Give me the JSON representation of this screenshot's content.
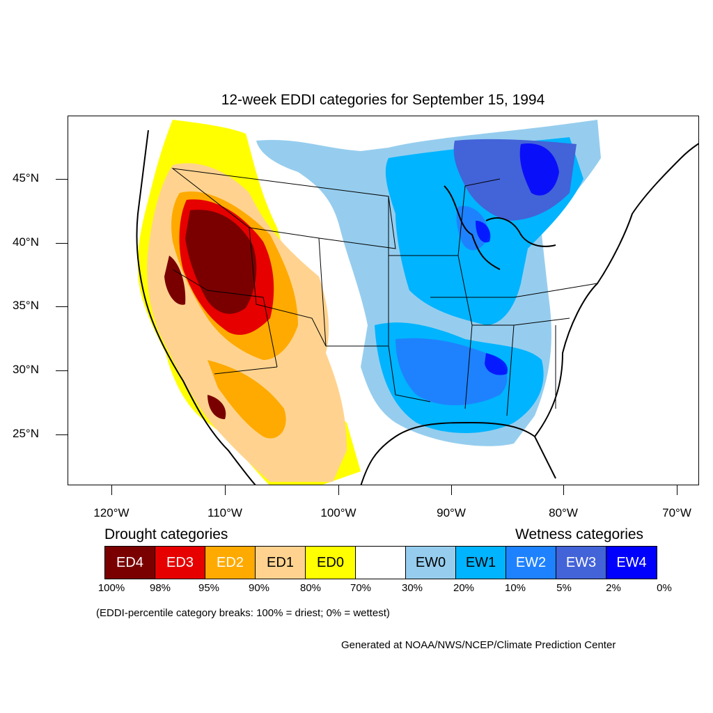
{
  "title": "12-week EDDI categories for September 15, 1994",
  "lat_labels": [
    "45°N",
    "40°N",
    "35°N",
    "30°N",
    "25°N"
  ],
  "lon_labels": [
    "120°W",
    "110°W",
    "100°W",
    "90°W",
    "80°W",
    "70°W"
  ],
  "drought_heading": "Drought categories",
  "wetness_heading": "Wetness categories",
  "legend": [
    {
      "label": "ED4",
      "color": "#7a0000",
      "text_color": "#ffffff"
    },
    {
      "label": "ED3",
      "color": "#e60000",
      "text_color": "#ffffff"
    },
    {
      "label": "ED2",
      "color": "#ffaa00",
      "text_color": "#ffffff"
    },
    {
      "label": "ED1",
      "color": "#ffd38f",
      "text_color": "#000000"
    },
    {
      "label": "ED0",
      "color": "#ffff00",
      "text_color": "#000000"
    },
    {
      "label": "",
      "color": "#ffffff",
      "text_color": "#000000"
    },
    {
      "label": "EW0",
      "color": "#96cdee",
      "text_color": "#000000"
    },
    {
      "label": "EW1",
      "color": "#00b4ff",
      "text_color": "#000000"
    },
    {
      "label": "EW2",
      "color": "#1e82ff",
      "text_color": "#ffffff"
    },
    {
      "label": "EW3",
      "color": "#4363d8",
      "text_color": "#ffffff"
    },
    {
      "label": "EW4",
      "color": "#0000ff",
      "text_color": "#ffffff"
    }
  ],
  "percentiles": [
    "100%",
    "98%",
    "95%",
    "90%",
    "80%",
    "70%",
    "30%",
    "20%",
    "10%",
    "5%",
    "2%",
    "0%"
  ],
  "note": "(EDDI-percentile category breaks: 100% = driest; 0% = wettest)",
  "credit": "Generated at NOAA/NWS/NCEP/Climate Prediction Center"
}
